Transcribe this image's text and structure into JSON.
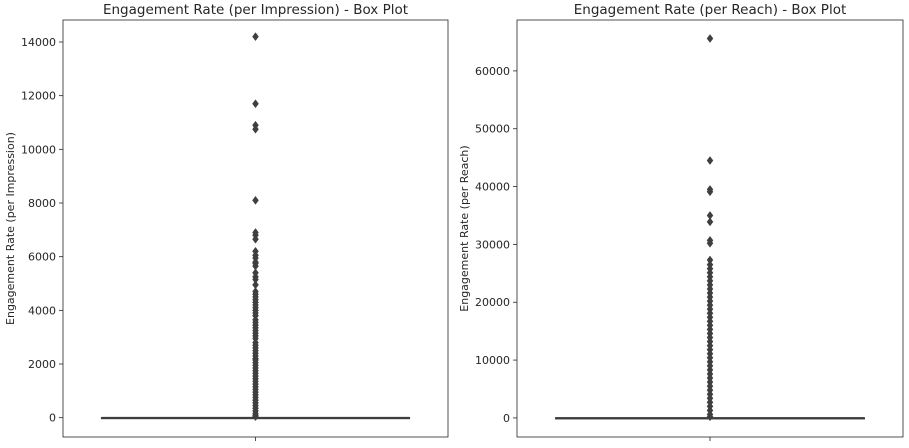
{
  "chart_data": [
    {
      "type": "box",
      "title": "Engagement Rate (per Impression) - Box Plot",
      "xlabel": "",
      "ylabel": "Engagement Rate (per Impression)",
      "ylim": [
        -720,
        14820
      ],
      "yticks": [
        0,
        2000,
        4000,
        6000,
        8000,
        10000,
        12000,
        14000
      ],
      "ytick_labels": [
        "0",
        "2000",
        "4000",
        "6000",
        "8000",
        "10000",
        "12000",
        "14000"
      ],
      "grid": false,
      "box": {
        "q1": 0,
        "median": 0,
        "q3": 3,
        "whisker_low": 0,
        "whisker_high": 8
      },
      "outliers": [
        14200,
        11700,
        10900,
        10750,
        8100,
        6900,
        6800,
        6650,
        6200,
        6050,
        5950,
        5800,
        5750,
        5650,
        5400,
        5250,
        5150,
        4950,
        4700,
        4600,
        4500,
        4400,
        4300,
        4200,
        4100,
        4000,
        3900,
        3800,
        3650,
        3550,
        3450,
        3350,
        3250,
        3150,
        3050,
        2950,
        2800,
        2700,
        2600,
        2500,
        2400,
        2300,
        2200,
        2150,
        2050,
        1950,
        1850,
        1750,
        1650,
        1550,
        1450,
        1350,
        1250,
        1150,
        1050,
        950,
        850,
        750,
        650,
        550,
        450,
        350,
        250,
        150,
        80,
        40
      ]
    },
    {
      "type": "box",
      "title": "Engagement Rate (per Reach) - Box Plot",
      "xlabel": "",
      "ylabel": "Engagement Rate (per Reach)",
      "ylim": [
        -3300,
        68800
      ],
      "yticks": [
        0,
        10000,
        20000,
        30000,
        40000,
        50000,
        60000
      ],
      "ytick_labels": [
        "0",
        "10000",
        "20000",
        "30000",
        "40000",
        "50000",
        "60000"
      ],
      "grid": false,
      "box": {
        "q1": 0,
        "median": 0,
        "q3": 10,
        "whisker_low": 0,
        "whisker_high": 25
      },
      "outliers": [
        65600,
        44500,
        39500,
        39100,
        35000,
        33900,
        30700,
        30200,
        27300,
        26500,
        25800,
        25100,
        24400,
        23700,
        23000,
        22300,
        21600,
        20900,
        20200,
        19500,
        18800,
        18100,
        17400,
        16700,
        16000,
        15300,
        14600,
        13900,
        13200,
        12500,
        11800,
        11100,
        10400,
        9700,
        9000,
        8300,
        7600,
        6900,
        6200,
        5500,
        4800,
        4100,
        3400,
        2700,
        2000,
        1300,
        600,
        200
      ]
    }
  ]
}
